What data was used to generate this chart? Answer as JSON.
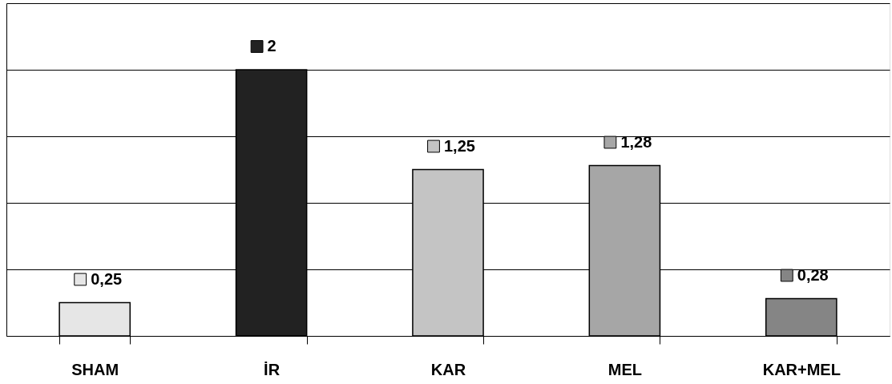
{
  "chart_data": {
    "type": "bar",
    "categories": [
      "SHAM",
      "İR",
      "KAR",
      "MEL",
      "KAR+MEL"
    ],
    "values": [
      0.25,
      2,
      1.25,
      1.28,
      0.28
    ],
    "colors": [
      "#e6e6e6",
      "#222222",
      "#c4c4c4",
      "#a6a6a6",
      "#858585"
    ],
    "value_labels": [
      "0,25",
      "2",
      "1,25",
      "1,28",
      "0,28"
    ],
    "ylim": [
      0,
      2.5
    ],
    "yticks": [
      {
        "value": 0,
        "label": null
      },
      {
        "value": 0.5,
        "label": null
      },
      {
        "value": 1,
        "label": null
      },
      {
        "value": 1.5,
        "label": null
      },
      {
        "value": 2,
        "label": null
      },
      {
        "value": 2.5,
        "label": null
      }
    ],
    "tick_labels": "x",
    "grid": "y"
  }
}
